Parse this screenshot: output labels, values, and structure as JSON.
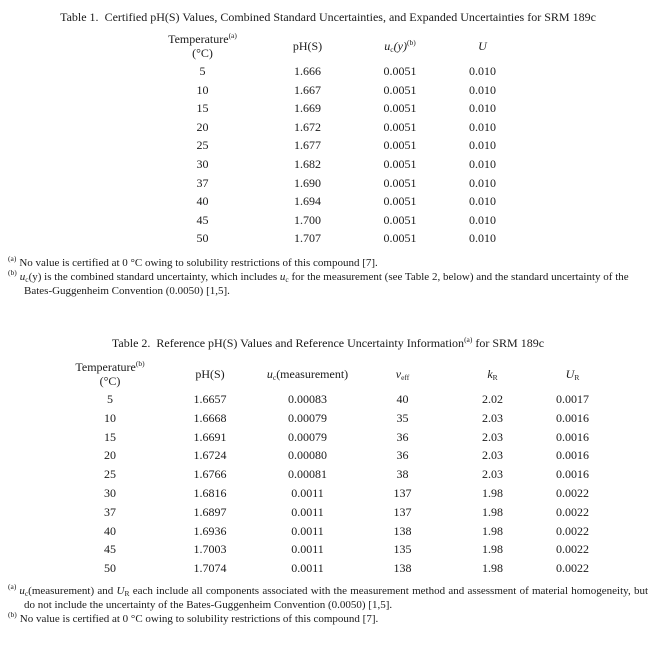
{
  "page": {
    "background": "#ffffff",
    "ink": "#1a1a1a"
  },
  "table1": {
    "title_label": "Table 1.",
    "title_text": "Certified pH(S) Values, Combined Standard Uncertainties, and Expanded Uncertainties for SRM 189c",
    "header": {
      "temperature": "Temperature",
      "temperature_sup": "(a)",
      "temperature_unit": "(°C)",
      "ph": "pH(S)",
      "uc_var": "u",
      "uc_sub": "c",
      "uc_arg": "(y)",
      "uc_sup": "(b)",
      "expanded_u": "U"
    },
    "rows": [
      [
        "5",
        "1.666",
        "0.0051",
        "0.010"
      ],
      [
        "10",
        "1.667",
        "0.0051",
        "0.010"
      ],
      [
        "15",
        "1.669",
        "0.0051",
        "0.010"
      ],
      [
        "20",
        "1.672",
        "0.0051",
        "0.010"
      ],
      [
        "25",
        "1.677",
        "0.0051",
        "0.010"
      ],
      [
        "30",
        "1.682",
        "0.0051",
        "0.010"
      ],
      [
        "37",
        "1.690",
        "0.0051",
        "0.010"
      ],
      [
        "40",
        "1.694",
        "0.0051",
        "0.010"
      ],
      [
        "45",
        "1.700",
        "0.0051",
        "0.010"
      ],
      [
        "50",
        "1.707",
        "0.0051",
        "0.010"
      ]
    ],
    "footnotes": {
      "a_marker": "(a)",
      "a_text": "No value is certified at 0 °C owing to solubility restrictions of this compound [7].",
      "b_marker": "(b)",
      "b_var1": "u",
      "b_sub1": "c",
      "b_text1": "(y) is the combined standard uncertainty, which includes ",
      "b_var2": "u",
      "b_sub2": "c",
      "b_text2": " for the measurement (see Table 2, below) and the standard uncertainty of the Bates-Guggenheim Convention (0.0050) [1,5]."
    }
  },
  "table2": {
    "title_label": "Table 2.",
    "title_text1": "Reference pH(S) Values and Reference Uncertainty Information",
    "title_sup": "(a)",
    "title_text2": " for SRM 189c",
    "header": {
      "temperature": "Temperature",
      "temperature_sup": "(b)",
      "temperature_unit": "(°C)",
      "ph": "pH(S)",
      "uc_var": "u",
      "uc_sub": "c",
      "uc_arg": "(measurement)",
      "nu_var": "ν",
      "nu_sub": "eff",
      "k_var": "k",
      "k_sub": "R",
      "ur_var": "U",
      "ur_sub": "R"
    },
    "rows": [
      [
        "5",
        "1.6657",
        "0.00083",
        "40",
        "2.02",
        "0.0017"
      ],
      [
        "10",
        "1.6668",
        "0.00079",
        "35",
        "2.03",
        "0.0016"
      ],
      [
        "15",
        "1.6691",
        "0.00079",
        "36",
        "2.03",
        "0.0016"
      ],
      [
        "20",
        "1.6724",
        "0.00080",
        "36",
        "2.03",
        "0.0016"
      ],
      [
        "25",
        "1.6766",
        "0.00081",
        "38",
        "2.03",
        "0.0016"
      ],
      [
        "30",
        "1.6816",
        "0.0011",
        "137",
        "1.98",
        "0.0022"
      ],
      [
        "37",
        "1.6897",
        "0.0011",
        "137",
        "1.98",
        "0.0022"
      ],
      [
        "40",
        "1.6936",
        "0.0011",
        "138",
        "1.98",
        "0.0022"
      ],
      [
        "45",
        "1.7003",
        "0.0011",
        "135",
        "1.98",
        "0.0022"
      ],
      [
        "50",
        "1.7074",
        "0.0011",
        "138",
        "1.98",
        "0.0022"
      ]
    ],
    "footnotes": {
      "a_marker": "(a)",
      "a_var1": "u",
      "a_sub1": "c",
      "a_text1": "(measurement) and ",
      "a_var2": "U",
      "a_sub2": "R",
      "a_text2": " each include all components associated with the measurement method and assessment of material homogeneity, but do not include the uncertainty of the Bates-Guggenheim Convention (0.0050) [1,5].",
      "b_marker": "(b)",
      "b_text": "No value is certified at 0 °C owing to solubility restrictions of this compound [7]."
    }
  }
}
